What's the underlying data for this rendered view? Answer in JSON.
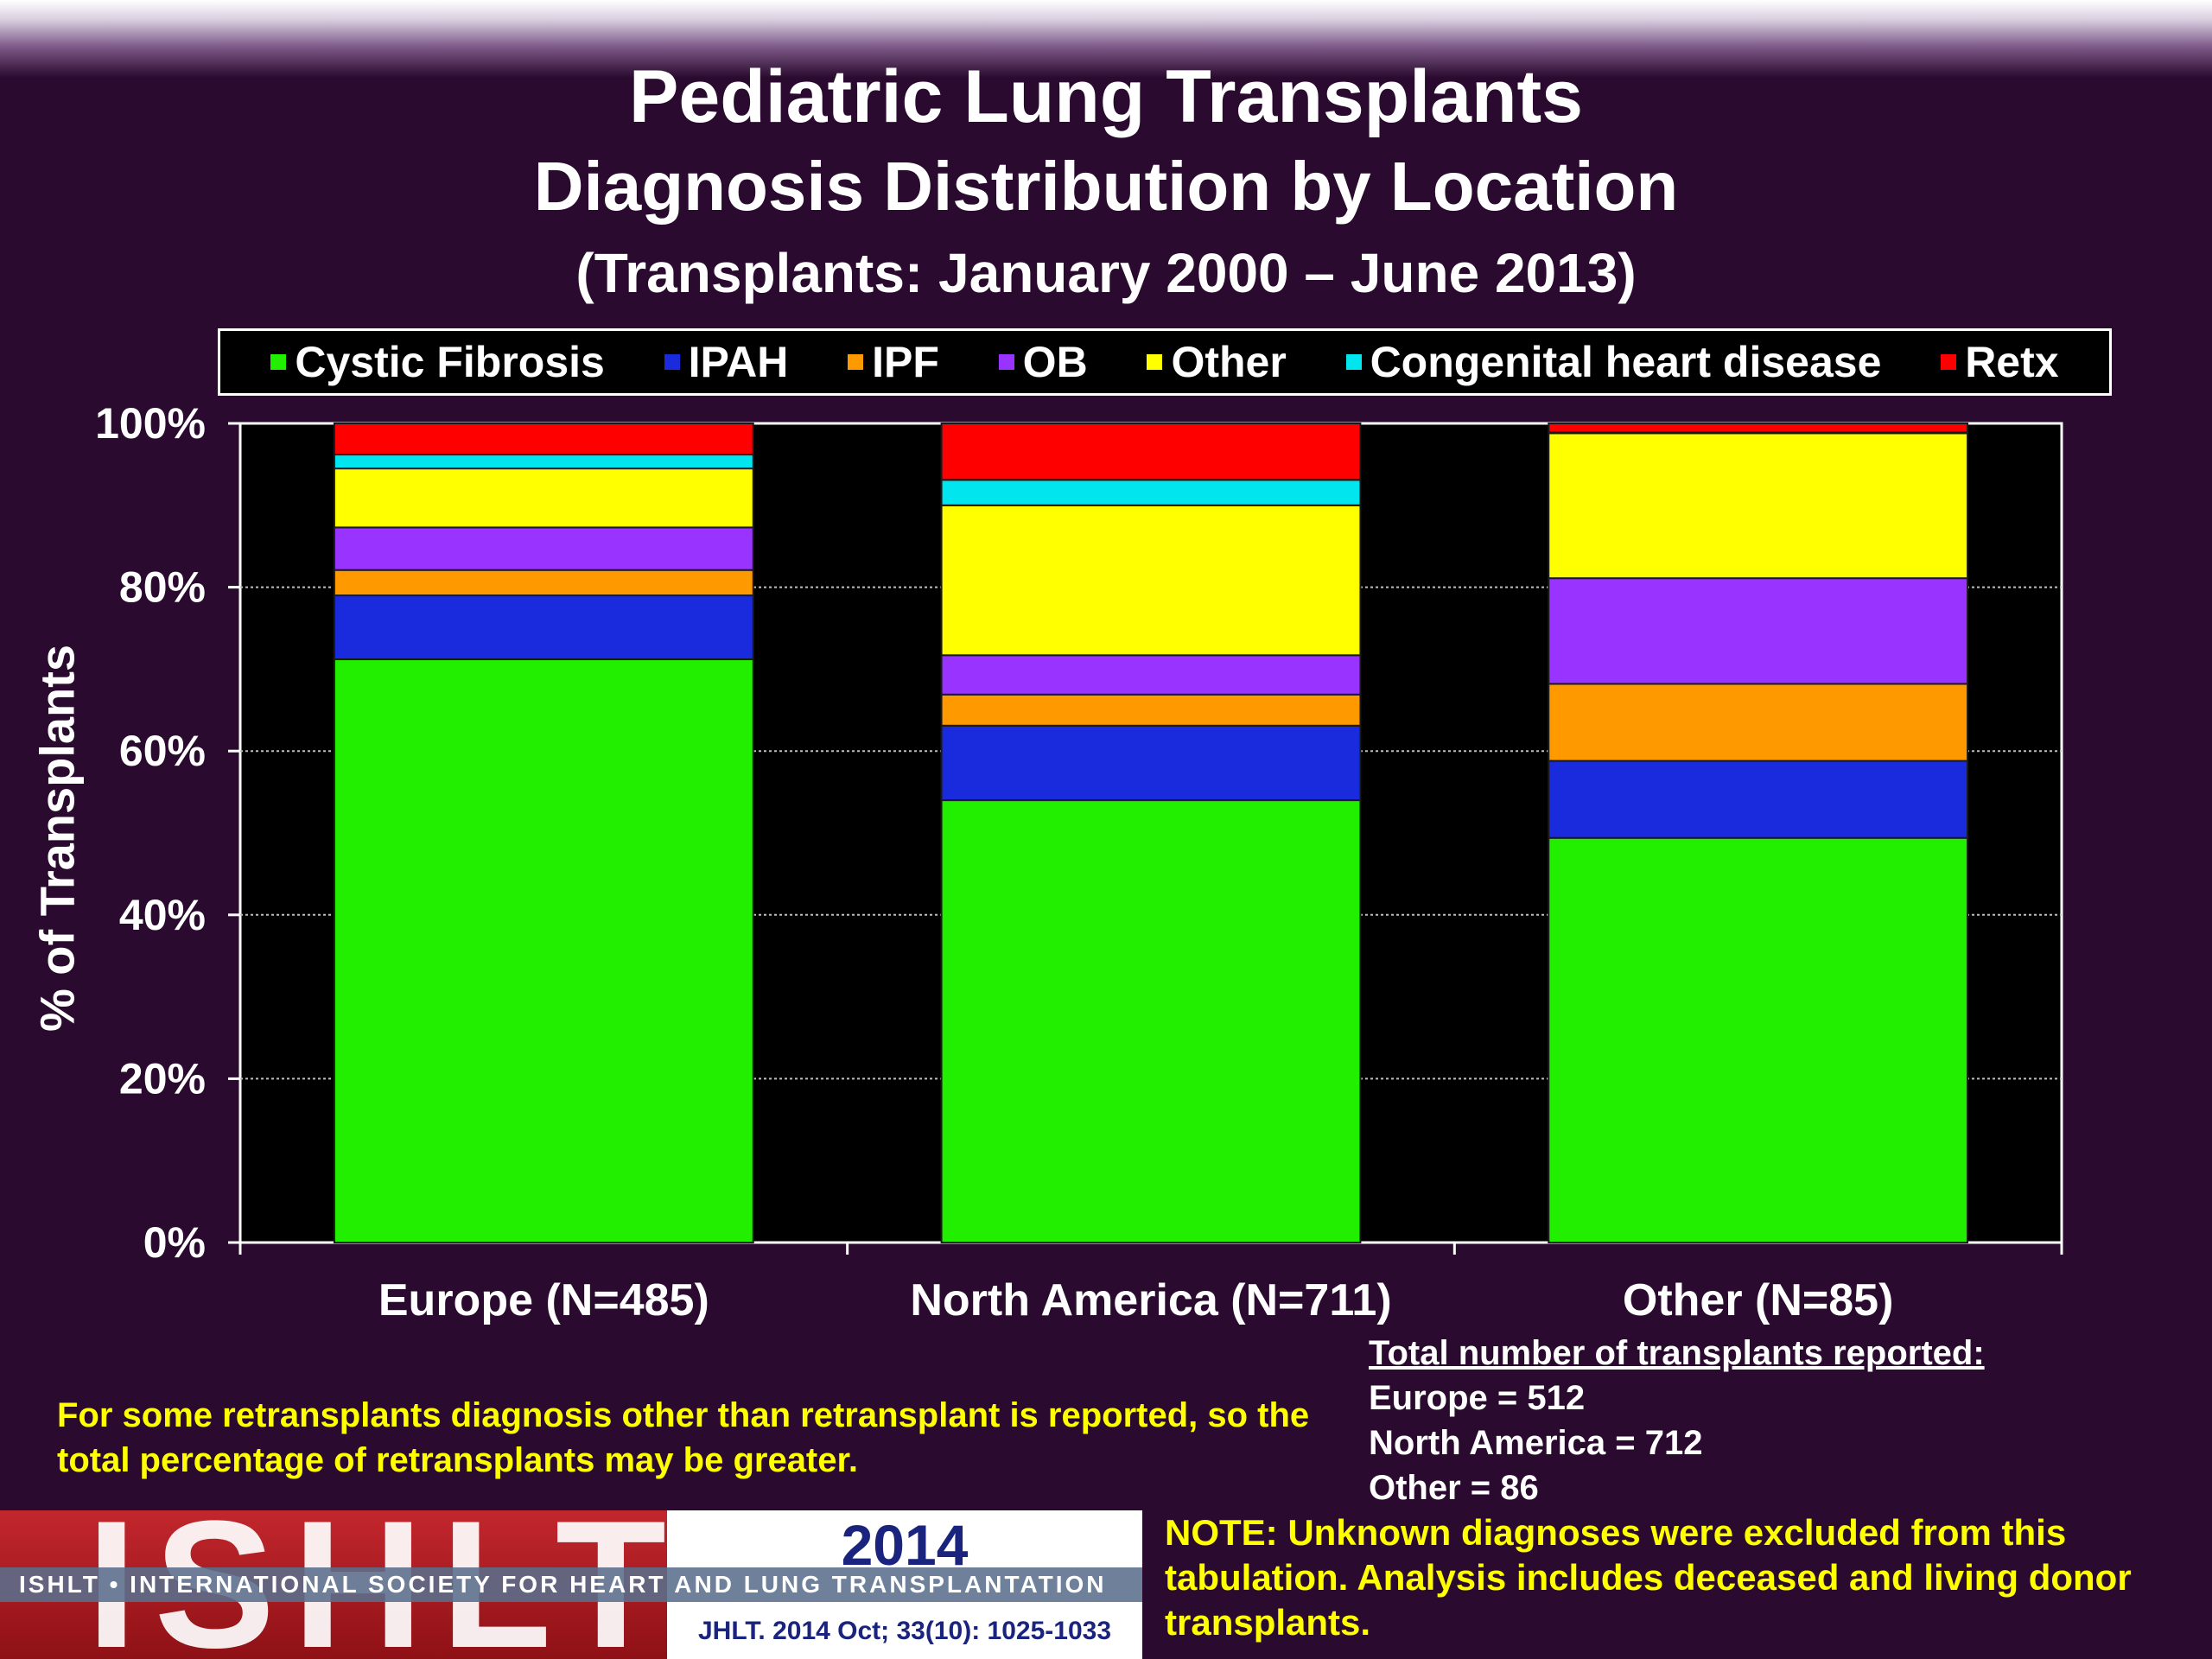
{
  "title": {
    "line1": "Pediatric Lung Transplants",
    "line2": "Diagnosis Distribution by Location",
    "line3": "(Transplants: January 2000 – June 2013)"
  },
  "legend": [
    {
      "label": "Cystic Fibrosis",
      "color": "#22ee00"
    },
    {
      "label": "IPAH",
      "color": "#1a2bdd"
    },
    {
      "label": "IPF",
      "color": "#ff9900"
    },
    {
      "label": "OB",
      "color": "#9933ff"
    },
    {
      "label": "Other",
      "color": "#ffff00"
    },
    {
      "label": "Congenital heart disease",
      "color": "#00e5ee"
    },
    {
      "label": "Retx",
      "color": "#ff0000"
    }
  ],
  "chart_data": {
    "type": "bar",
    "stacked": true,
    "title": "Pediatric Lung Transplants Diagnosis Distribution by Location",
    "ylabel": "% of Transplants",
    "xlabel": "",
    "ylim": [
      0,
      100
    ],
    "yticks": [
      "0%",
      "20%",
      "40%",
      "60%",
      "80%",
      "100%"
    ],
    "grid": true,
    "categories": [
      "Europe (N=485)",
      "North America (N=711)",
      "Other (N=85)"
    ],
    "series": [
      {
        "name": "Cystic Fibrosis",
        "color": "#22ee00",
        "values": [
          71.2,
          54.0,
          49.4
        ]
      },
      {
        "name": "IPAH",
        "color": "#1a2bdd",
        "values": [
          7.8,
          9.1,
          9.4
        ]
      },
      {
        "name": "IPF",
        "color": "#ff9900",
        "values": [
          3.1,
          3.8,
          9.4
        ]
      },
      {
        "name": "OB",
        "color": "#9933ff",
        "values": [
          5.2,
          4.8,
          12.9
        ]
      },
      {
        "name": "Other",
        "color": "#ffff00",
        "values": [
          7.2,
          18.3,
          17.7
        ]
      },
      {
        "name": "Congenital heart disease",
        "color": "#00e5ee",
        "values": [
          1.7,
          3.1,
          0.1
        ]
      },
      {
        "name": "Retx",
        "color": "#ff0000",
        "values": [
          3.8,
          6.9,
          1.1
        ]
      }
    ]
  },
  "notes": {
    "retransplant": "For some retransplants diagnosis other than retransplant is reported, so the total percentage of retransplants may be greater.",
    "totals_head": "Total number of transplants reported:",
    "totals": [
      "Europe = 512",
      "North America = 712",
      "Other = 86"
    ],
    "unknown": "NOTE: Unknown diagnoses were excluded from this tabulation. Analysis includes deceased and living donor transplants."
  },
  "logo": {
    "word": "ISHLT",
    "year": "2014",
    "society": "ISHLT • INTERNATIONAL SOCIETY FOR HEART AND LUNG TRANSPLANTATION",
    "citation": "JHLT. 2014 Oct; 33(10): 1025-1033"
  }
}
